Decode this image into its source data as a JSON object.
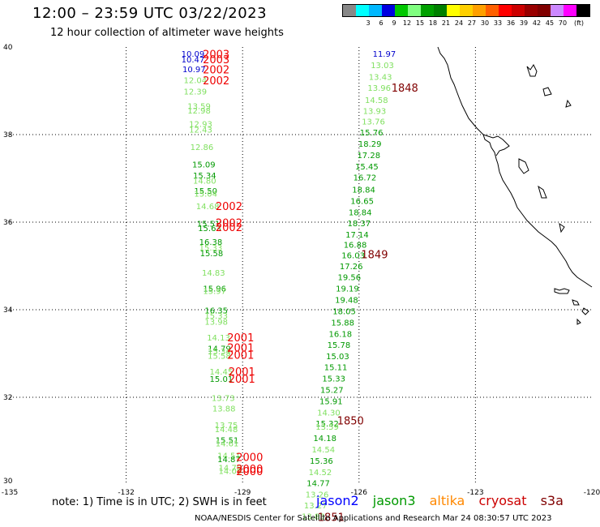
{
  "header": {
    "title": "12:00  –  23:59 UTC 03/22/2023",
    "subtitle": "12 hour collection of altimeter wave heights"
  },
  "legend": {
    "colors": [
      "#888888",
      "#00ffff",
      "#00b8ff",
      "#0000e0",
      "#00c800",
      "#80ff80",
      "#00a000",
      "#008000",
      "#ffff00",
      "#ffd000",
      "#ffa000",
      "#ff6000",
      "#ff0000",
      "#cc0000",
      "#990000",
      "#800000",
      "#cc88ff",
      "#ff00ff",
      "#000000"
    ],
    "ticks": [
      "3",
      "6",
      "9",
      "12",
      "15",
      "18",
      "21",
      "24",
      "27",
      "30",
      "33",
      "36",
      "39",
      "42",
      "45",
      "70",
      "(ft)"
    ]
  },
  "axes": {
    "lon_ticks": [
      "-135",
      "-132",
      "-129",
      "-126",
      "-123",
      "-120"
    ],
    "lat_ticks": [
      "30",
      "32",
      "34",
      "36",
      "38",
      "40"
    ]
  },
  "colors": {
    "jason2": "#0000ff",
    "jason3": "#009900",
    "altika": "#ff8800",
    "cryosat": "#cc0000",
    "s3a": "#800000",
    "light_green": "#80e060",
    "dark_green": "#009900",
    "blue": "#0000cc",
    "red": "#ee0000",
    "maroon": "#800000",
    "coast": "#000000"
  },
  "track_west": [
    {
      "lat": 39.78,
      "lon": -130.28,
      "h": "10.09",
      "c": "blue"
    },
    {
      "lat": 39.65,
      "lon": -130.28,
      "h": "10.47",
      "c": "blue"
    },
    {
      "lat": 39.43,
      "lon": -130.25,
      "h": "10.97",
      "c": "blue"
    },
    {
      "lat": 39.18,
      "lon": -130.22,
      "h": "12.04",
      "c": "light"
    },
    {
      "lat": 38.92,
      "lon": -130.22,
      "h": "12.39",
      "c": "light"
    },
    {
      "lat": 38.58,
      "lon": -130.12,
      "h": "13.59",
      "c": "light"
    },
    {
      "lat": 38.48,
      "lon": -130.12,
      "h": "12.98",
      "c": "light"
    },
    {
      "lat": 38.18,
      "lon": -130.08,
      "h": "12.93",
      "c": "light"
    },
    {
      "lat": 38.05,
      "lon": -130.08,
      "h": "12.43",
      "c": "light"
    },
    {
      "lat": 37.65,
      "lon": -130.05,
      "h": "12.86",
      "c": "light"
    },
    {
      "lat": 37.25,
      "lon": -130.0,
      "h": "15.09",
      "c": "dark"
    },
    {
      "lat": 37.0,
      "lon": -129.98,
      "h": "15.34",
      "c": "dark"
    },
    {
      "lat": 36.88,
      "lon": -129.98,
      "h": "14.80",
      "c": "light"
    },
    {
      "lat": 36.65,
      "lon": -129.95,
      "h": "15.50",
      "c": "dark"
    },
    {
      "lat": 36.58,
      "lon": -129.95,
      "h": "15.04",
      "c": "light"
    },
    {
      "lat": 36.3,
      "lon": -129.9,
      "h": "14.68",
      "c": "light"
    },
    {
      "lat": 35.9,
      "lon": -129.88,
      "h": "15.51",
      "c": "dark"
    },
    {
      "lat": 35.8,
      "lon": -129.85,
      "h": "15.63",
      "c": "dark"
    },
    {
      "lat": 35.48,
      "lon": -129.82,
      "h": "16.38",
      "c": "dark"
    },
    {
      "lat": 35.35,
      "lon": -129.82,
      "h": "15.33",
      "c": "light"
    },
    {
      "lat": 35.22,
      "lon": -129.8,
      "h": "15.58",
      "c": "dark"
    },
    {
      "lat": 34.78,
      "lon": -129.75,
      "h": "14.83",
      "c": "light"
    },
    {
      "lat": 34.42,
      "lon": -129.72,
      "h": "15.96",
      "c": "dark"
    },
    {
      "lat": 34.36,
      "lon": -129.72,
      "h": "15.97",
      "c": "light"
    },
    {
      "lat": 33.92,
      "lon": -129.68,
      "h": "16.35",
      "c": "dark"
    },
    {
      "lat": 33.8,
      "lon": -129.68,
      "h": "15.33",
      "c": "light"
    },
    {
      "lat": 33.66,
      "lon": -129.68,
      "h": "13.98",
      "c": "light"
    },
    {
      "lat": 33.3,
      "lon": -129.62,
      "h": "14.13",
      "c": "light"
    },
    {
      "lat": 33.05,
      "lon": -129.6,
      "h": "14.79",
      "c": "dark"
    },
    {
      "lat": 32.98,
      "lon": -129.6,
      "h": "15.34",
      "c": "light"
    },
    {
      "lat": 32.88,
      "lon": -129.6,
      "h": "15.58",
      "c": "light"
    },
    {
      "lat": 32.52,
      "lon": -129.55,
      "h": "14.45",
      "c": "light"
    },
    {
      "lat": 32.35,
      "lon": -129.55,
      "h": "15.01",
      "c": "dark"
    },
    {
      "lat": 31.92,
      "lon": -129.5,
      "h": "13.73",
      "c": "light"
    },
    {
      "lat": 31.68,
      "lon": -129.48,
      "h": "13.88",
      "c": "light"
    },
    {
      "lat": 31.3,
      "lon": -129.42,
      "h": "13.75",
      "c": "light"
    },
    {
      "lat": 31.2,
      "lon": -129.42,
      "h": "14.48",
      "c": "light"
    },
    {
      "lat": 30.95,
      "lon": -129.4,
      "h": "15.51",
      "c": "dark"
    },
    {
      "lat": 30.88,
      "lon": -129.4,
      "h": "14.61",
      "c": "light"
    },
    {
      "lat": 30.6,
      "lon": -129.35,
      "h": "14.51",
      "c": "light"
    },
    {
      "lat": 30.52,
      "lon": -129.35,
      "h": "14.87",
      "c": "dark"
    },
    {
      "lat": 30.32,
      "lon": -129.32,
      "h": "14.79",
      "c": "light"
    },
    {
      "lat": 30.25,
      "lon": -129.32,
      "h": "14.09",
      "c": "light"
    }
  ],
  "track_east": [
    {
      "lat": 39.78,
      "lon": -125.35,
      "h": "11.97",
      "c": "blue"
    },
    {
      "lat": 39.52,
      "lon": -125.4,
      "h": "13.03",
      "c": "light"
    },
    {
      "lat": 39.25,
      "lon": -125.45,
      "h": "13.43",
      "c": "light"
    },
    {
      "lat": 39.0,
      "lon": -125.48,
      "h": "13.96",
      "c": "light"
    },
    {
      "lat": 38.72,
      "lon": -125.55,
      "h": "14.58",
      "c": "light"
    },
    {
      "lat": 38.47,
      "lon": -125.6,
      "h": "13.93",
      "c": "light"
    },
    {
      "lat": 38.23,
      "lon": -125.63,
      "h": "13.76",
      "c": "light"
    },
    {
      "lat": 37.98,
      "lon": -125.68,
      "h": "15.76",
      "c": "dark"
    },
    {
      "lat": 37.72,
      "lon": -125.72,
      "h": "18.29",
      "c": "dark"
    },
    {
      "lat": 37.46,
      "lon": -125.75,
      "h": "17.28",
      "c": "dark"
    },
    {
      "lat": 37.2,
      "lon": -125.8,
      "h": "15.45",
      "c": "dark"
    },
    {
      "lat": 36.95,
      "lon": -125.85,
      "h": "16.72",
      "c": "dark"
    },
    {
      "lat": 36.68,
      "lon": -125.88,
      "h": "18.84",
      "c": "dark"
    },
    {
      "lat": 36.42,
      "lon": -125.92,
      "h": "16.65",
      "c": "dark"
    },
    {
      "lat": 36.16,
      "lon": -125.97,
      "h": "18.84",
      "c": "dark"
    },
    {
      "lat": 35.91,
      "lon": -126.0,
      "h": "18.37",
      "c": "dark"
    },
    {
      "lat": 35.65,
      "lon": -126.05,
      "h": "17.14",
      "c": "dark"
    },
    {
      "lat": 35.42,
      "lon": -126.1,
      "h": "16.88",
      "c": "dark"
    },
    {
      "lat": 35.18,
      "lon": -126.15,
      "h": "16.03",
      "c": "dark"
    },
    {
      "lat": 34.93,
      "lon": -126.2,
      "h": "17.26",
      "c": "dark"
    },
    {
      "lat": 34.68,
      "lon": -126.25,
      "h": "19.56",
      "c": "dark"
    },
    {
      "lat": 34.42,
      "lon": -126.3,
      "h": "19.19",
      "c": "dark"
    },
    {
      "lat": 34.16,
      "lon": -126.32,
      "h": "19.48",
      "c": "dark"
    },
    {
      "lat": 33.9,
      "lon": -126.38,
      "h": "18.05",
      "c": "dark"
    },
    {
      "lat": 33.64,
      "lon": -126.42,
      "h": "15.88",
      "c": "dark"
    },
    {
      "lat": 33.38,
      "lon": -126.48,
      "h": "16.18",
      "c": "dark"
    },
    {
      "lat": 33.13,
      "lon": -126.52,
      "h": "15.78",
      "c": "dark"
    },
    {
      "lat": 32.87,
      "lon": -126.55,
      "h": "15.03",
      "c": "dark"
    },
    {
      "lat": 32.62,
      "lon": -126.6,
      "h": "15.11",
      "c": "dark"
    },
    {
      "lat": 32.36,
      "lon": -126.65,
      "h": "15.33",
      "c": "dark"
    },
    {
      "lat": 32.1,
      "lon": -126.7,
      "h": "15.27",
      "c": "dark"
    },
    {
      "lat": 31.84,
      "lon": -126.72,
      "h": "15.91",
      "c": "dark"
    },
    {
      "lat": 31.58,
      "lon": -126.78,
      "h": "14.30",
      "c": "light"
    },
    {
      "lat": 31.33,
      "lon": -126.82,
      "h": "15.32",
      "c": "dark"
    },
    {
      "lat": 31.26,
      "lon": -126.82,
      "h": "13.59",
      "c": "light"
    },
    {
      "lat": 31.0,
      "lon": -126.88,
      "h": "14.18",
      "c": "dark"
    },
    {
      "lat": 30.74,
      "lon": -126.92,
      "h": "14.54",
      "c": "light"
    },
    {
      "lat": 30.48,
      "lon": -126.97,
      "h": "15.36",
      "c": "dark"
    },
    {
      "lat": 30.22,
      "lon": -127.0,
      "h": "14.52",
      "c": "light"
    },
    {
      "lat": 29.97,
      "lon": -127.05,
      "h": "14.77",
      "c": "dark"
    },
    {
      "lat": 29.71,
      "lon": -127.08,
      "h": "13.26",
      "c": "light"
    },
    {
      "lat": 29.46,
      "lon": -127.12,
      "h": "13.27",
      "c": "light"
    },
    {
      "lat": 29.21,
      "lon": -127.18,
      "h": "13.83",
      "c": "light"
    }
  ],
  "time_labels": [
    {
      "lat": 39.75,
      "lon": -129.68,
      "t": "2003",
      "c": "red"
    },
    {
      "lat": 39.63,
      "lon": -129.68,
      "t": "2003",
      "c": "red"
    },
    {
      "lat": 39.4,
      "lon": -129.68,
      "t": "2002",
      "c": "red"
    },
    {
      "lat": 39.15,
      "lon": -129.68,
      "t": "2002",
      "c": "red"
    },
    {
      "lat": 36.28,
      "lon": -129.35,
      "t": "2002",
      "c": "red"
    },
    {
      "lat": 35.9,
      "lon": -129.35,
      "t": "2002",
      "c": "red"
    },
    {
      "lat": 35.8,
      "lon": -129.35,
      "t": "2002",
      "c": "red"
    },
    {
      "lat": 33.28,
      "lon": -129.05,
      "t": "2001",
      "c": "red"
    },
    {
      "lat": 33.05,
      "lon": -129.05,
      "t": "2001",
      "c": "red"
    },
    {
      "lat": 32.88,
      "lon": -129.05,
      "t": "2001",
      "c": "red"
    },
    {
      "lat": 32.5,
      "lon": -129.02,
      "t": "2001",
      "c": "red"
    },
    {
      "lat": 32.33,
      "lon": -129.02,
      "t": "2001",
      "c": "red"
    },
    {
      "lat": 30.55,
      "lon": -128.82,
      "t": "2000",
      "c": "red"
    },
    {
      "lat": 30.28,
      "lon": -128.82,
      "t": "2000",
      "c": "red"
    },
    {
      "lat": 30.22,
      "lon": -128.82,
      "t": "2000",
      "c": "red"
    },
    {
      "lat": 38.98,
      "lon": -124.82,
      "t": "1848",
      "c": "maroon"
    },
    {
      "lat": 35.18,
      "lon": -125.6,
      "t": "1849",
      "c": "maroon"
    },
    {
      "lat": 31.38,
      "lon": -126.22,
      "t": "1850",
      "c": "maroon"
    },
    {
      "lat": 29.18,
      "lon": -126.72,
      "t": "1851",
      "c": "maroon"
    }
  ],
  "notes": {
    "footnote": "note:  1) Time is in UTC;  2) SWH is in feet",
    "jason2": "jason2",
    "jason3": "jason3",
    "altika": "altika",
    "cryosat": "cryosat",
    "s3a": "s3a",
    "credit": "NOAA/NESDIS Center for Satellite Applications and Research    Mar 24 08:30:57 UTC 2023"
  }
}
